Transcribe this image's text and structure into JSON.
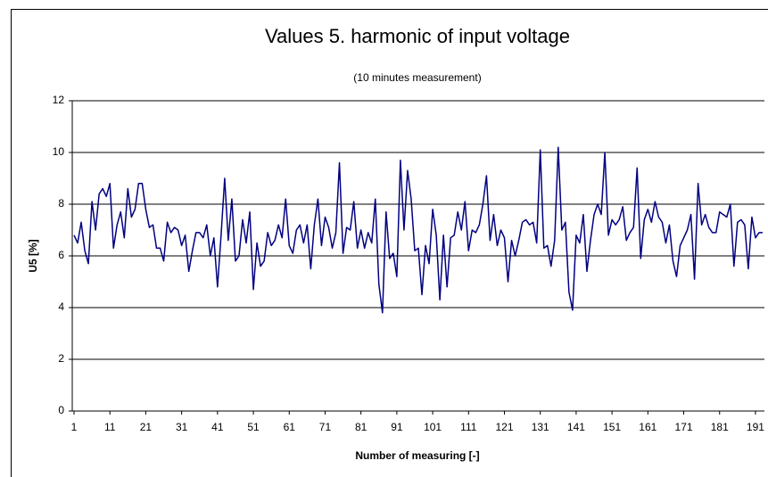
{
  "chart_data": {
    "type": "line",
    "title": "Values 5. harmonic of input voltage",
    "subtitle": "(10 minutes measurement)",
    "x_label": "Number of measuring [-]",
    "y_label": "U5  [%]",
    "x": [
      1,
      2,
      3,
      4,
      5,
      6,
      7,
      8,
      9,
      10,
      11,
      12,
      13,
      14,
      15,
      16,
      17,
      18,
      19,
      20,
      21,
      22,
      23,
      24,
      25,
      26,
      27,
      28,
      29,
      30,
      31,
      32,
      33,
      34,
      35,
      36,
      37,
      38,
      39,
      40,
      41,
      42,
      43,
      44,
      45,
      46,
      47,
      48,
      49,
      50,
      51,
      52,
      53,
      54,
      55,
      56,
      57,
      58,
      59,
      60,
      61,
      62,
      63,
      64,
      65,
      66,
      67,
      68,
      69,
      70,
      71,
      72,
      73,
      74,
      75,
      76,
      77,
      78,
      79,
      80,
      81,
      82,
      83,
      84,
      85,
      86,
      87,
      88,
      89,
      90,
      91,
      92,
      93,
      94,
      95,
      96,
      97,
      98,
      99,
      100,
      101,
      102,
      103,
      104,
      105,
      106,
      107,
      108,
      109,
      110,
      111,
      112,
      113,
      114,
      115,
      116,
      117,
      118,
      119,
      120,
      121,
      122,
      123,
      124,
      125,
      126,
      127,
      128,
      129,
      130,
      131,
      132,
      133,
      134,
      135,
      136,
      137,
      138,
      139,
      140,
      141,
      142,
      143,
      144,
      145,
      146,
      147,
      148,
      149,
      150,
      151,
      152,
      153,
      154,
      155,
      156,
      157,
      158,
      159,
      160,
      161,
      162,
      163,
      164,
      165,
      166,
      167,
      168,
      169,
      170,
      171,
      172,
      173,
      174,
      175,
      176,
      177,
      178,
      179,
      180,
      181,
      182,
      183,
      184,
      185,
      186,
      187,
      188,
      189,
      190,
      191,
      192,
      193
    ],
    "series": [
      {
        "name": "U5",
        "color": "#000080",
        "values": [
          6.8,
          6.5,
          7.3,
          6.2,
          5.7,
          8.1,
          7.0,
          8.4,
          8.6,
          8.3,
          8.8,
          6.3,
          7.2,
          7.7,
          6.7,
          8.6,
          7.5,
          7.8,
          8.8,
          8.8,
          7.8,
          7.1,
          7.2,
          6.3,
          6.3,
          5.8,
          7.3,
          6.9,
          7.1,
          7.0,
          6.4,
          6.8,
          5.4,
          6.2,
          6.9,
          6.9,
          6.7,
          7.2,
          6.0,
          6.7,
          4.8,
          6.8,
          9.0,
          6.6,
          8.2,
          5.8,
          6.0,
          7.4,
          6.5,
          7.7,
          4.7,
          6.5,
          5.6,
          5.8,
          6.9,
          6.4,
          6.6,
          7.2,
          6.7,
          8.2,
          6.4,
          6.1,
          7.0,
          7.2,
          6.5,
          7.2,
          5.5,
          7.2,
          8.2,
          6.4,
          7.5,
          7.1,
          6.3,
          6.9,
          9.6,
          6.1,
          7.1,
          7.0,
          8.1,
          6.3,
          7.0,
          6.3,
          6.9,
          6.5,
          8.2,
          4.9,
          3.8,
          7.7,
          5.9,
          6.1,
          5.2,
          9.7,
          7.0,
          9.3,
          8.2,
          6.2,
          6.3,
          4.5,
          6.4,
          5.7,
          7.8,
          6.8,
          4.3,
          6.8,
          4.8,
          6.7,
          6.8,
          7.7,
          7.0,
          8.1,
          6.2,
          7.0,
          6.9,
          7.2,
          8.0,
          9.1,
          6.6,
          7.6,
          6.4,
          7.0,
          6.7,
          5.0,
          6.6,
          6.0,
          6.6,
          7.3,
          7.4,
          7.2,
          7.3,
          6.5,
          10.1,
          6.3,
          6.4,
          5.6,
          6.6,
          10.2,
          7.0,
          7.3,
          4.6,
          3.9,
          6.8,
          6.5,
          7.6,
          5.4,
          6.6,
          7.6,
          8.0,
          7.6,
          10.0,
          6.8,
          7.4,
          7.2,
          7.4,
          7.9,
          6.6,
          6.9,
          7.1,
          9.4,
          5.9,
          7.4,
          7.8,
          7.3,
          8.1,
          7.5,
          7.3,
          6.5,
          7.2,
          5.8,
          5.2,
          6.4,
          6.7,
          7.0,
          7.6,
          5.1,
          8.8,
          7.2,
          7.6,
          7.1,
          6.9,
          6.9,
          7.7,
          7.6,
          7.5,
          8.0,
          5.6,
          7.3,
          7.4,
          7.2,
          5.5,
          7.5,
          6.7,
          6.9,
          6.9
        ]
      }
    ],
    "xlim": [
      0.5,
      193.5
    ],
    "xticks": [
      1,
      11,
      21,
      31,
      41,
      51,
      61,
      71,
      81,
      91,
      101,
      111,
      121,
      131,
      141,
      151,
      161,
      171,
      181,
      191
    ],
    "ylim": [
      0,
      12
    ],
    "yticks": [
      0,
      2,
      4,
      6,
      8,
      10,
      12
    ],
    "grid": true
  }
}
